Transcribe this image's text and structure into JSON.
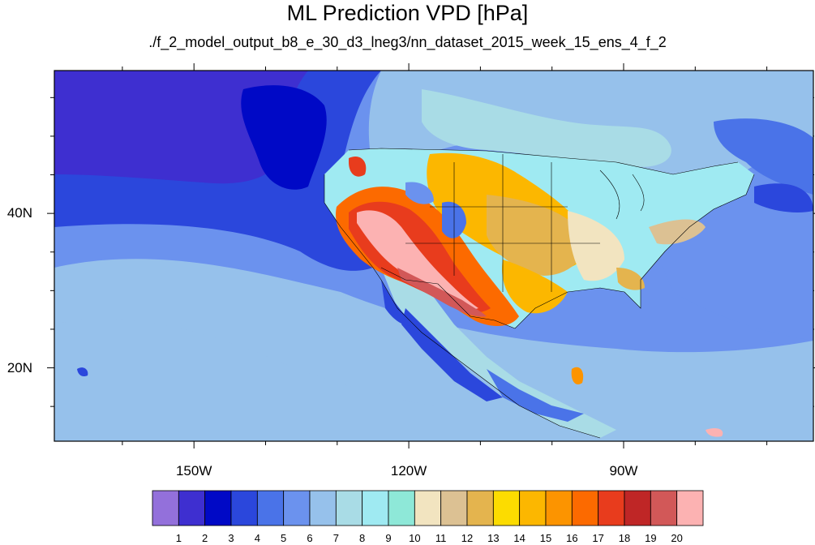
{
  "title": "ML Prediction VPD [hPa]",
  "subtitle": "./f_2_model_output_b8_e_30_d3_lneg3/nn_dataset_2015_week_15_ens_4_f_2",
  "axes": {
    "lon_range": [
      -169.5,
      -63.5
    ],
    "lat_range": [
      10.5,
      58.5
    ],
    "lon_labels": [
      {
        "value": -150,
        "label": "150W"
      },
      {
        "value": -120,
        "label": "120W"
      },
      {
        "value": -90,
        "label": "90W"
      }
    ],
    "lat_labels": [
      {
        "value": 40,
        "label": "40N"
      },
      {
        "value": 20,
        "label": "20N"
      }
    ]
  },
  "colorbar": {
    "colors": [
      "#9370db",
      "#3e2fd0",
      "#0009c6",
      "#2b47dc",
      "#4a73e8",
      "#6b92ee",
      "#96c1eb",
      "#a9dce6",
      "#9feaf2",
      "#8ee8d8",
      "#f2e4c0",
      "#dcc193",
      "#e4b44e",
      "#fcdc00",
      "#fcb700",
      "#fc9400",
      "#fc6a00",
      "#e83c1d",
      "#bf2626",
      "#d25858",
      "#fcb2b2"
    ],
    "labels": [
      "1",
      "2",
      "3",
      "4",
      "5",
      "6",
      "7",
      "8",
      "9",
      "10",
      "11",
      "12",
      "13",
      "14",
      "15",
      "16",
      "17",
      "18",
      "19",
      "20"
    ]
  }
}
